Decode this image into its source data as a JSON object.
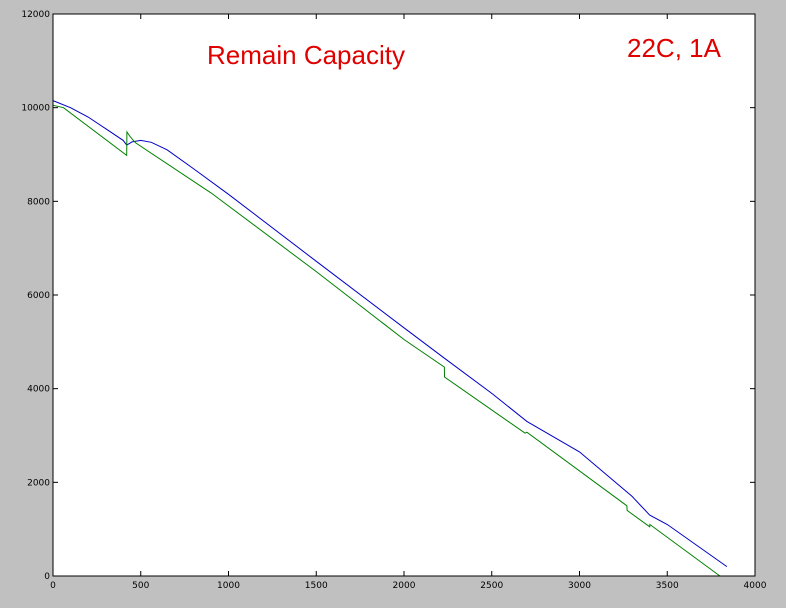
{
  "chart_data": {
    "type": "line",
    "title": "Remain Capacity",
    "annotation": "22C, 1A",
    "xlim": [
      0,
      4000
    ],
    "ylim": [
      0,
      12000
    ],
    "xticks": [
      0,
      500,
      1000,
      1500,
      2000,
      2500,
      3000,
      3500,
      4000
    ],
    "yticks": [
      0,
      2000,
      4000,
      6000,
      8000,
      10000,
      12000
    ],
    "grid": false,
    "background_color": "#c0c0c0",
    "plot_color": "#ffffff",
    "title_color": "#e00000",
    "series": [
      {
        "color": "#0000c8",
        "x": [
          0,
          100,
          200,
          300,
          400,
          420,
          450,
          500,
          560,
          650,
          800,
          1000,
          1500,
          2000,
          2230,
          2500,
          2700,
          3000,
          3300,
          3400,
          3500,
          3840
        ],
        "y": [
          10150,
          10000,
          9800,
          9550,
          9300,
          9200,
          9270,
          9300,
          9260,
          9100,
          8700,
          8150,
          6720,
          5300,
          4650,
          3900,
          3300,
          2650,
          1700,
          1300,
          1100,
          200
        ]
      },
      {
        "color": "#008000",
        "x": [
          0,
          60,
          420,
          421,
          440,
          470,
          900,
          1500,
          2000,
          2230,
          2231,
          2690,
          2700,
          3270,
          3271,
          3400,
          3401,
          3800
        ],
        "y": [
          10050,
          10000,
          8980,
          9480,
          9380,
          9250,
          8180,
          6500,
          5050,
          4460,
          4250,
          3050,
          3070,
          1500,
          1400,
          1050,
          1100,
          0
        ]
      }
    ]
  }
}
